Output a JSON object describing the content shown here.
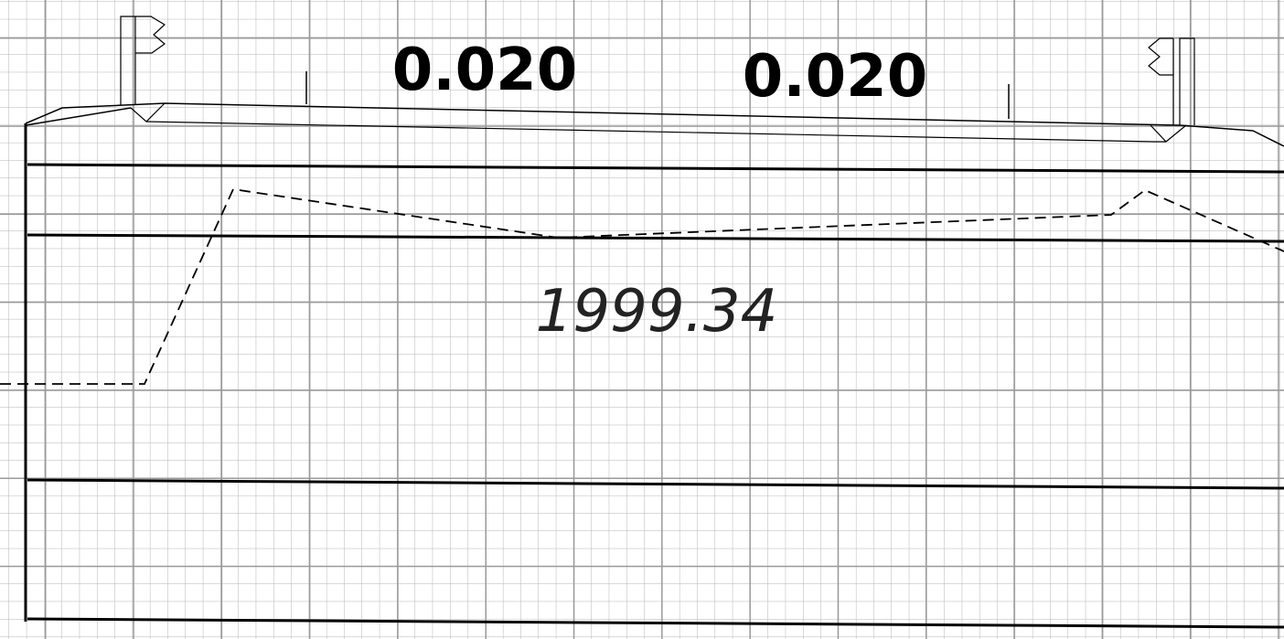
{
  "slopes": [
    "0.020",
    "0.020"
  ],
  "elevation": "1999.34"
}
